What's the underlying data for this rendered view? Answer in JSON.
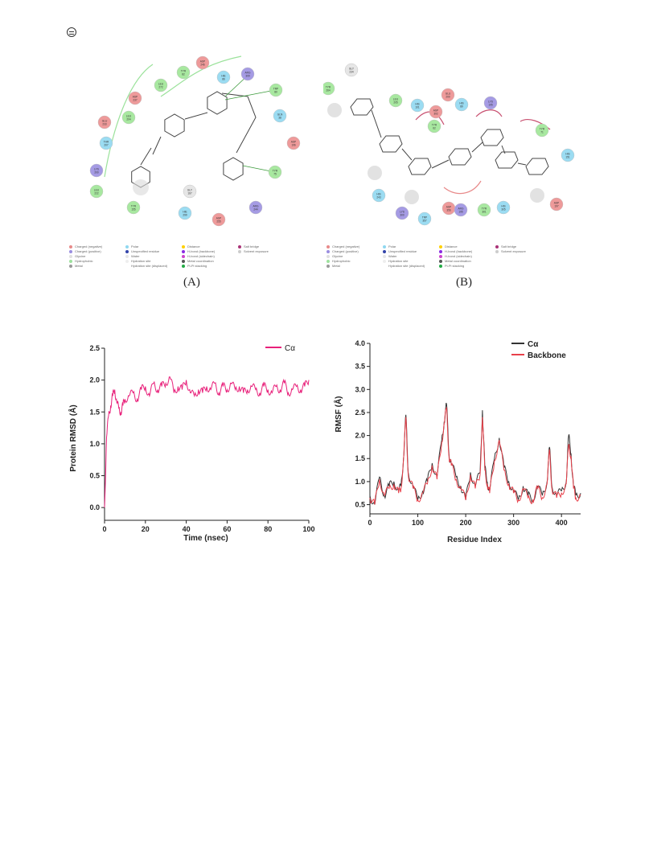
{
  "figure1": {
    "caption_a": "(A)",
    "caption_b": "(B)",
    "residues_a": [
      {
        "label": "ASP 246",
        "type": "neg"
      },
      {
        "label": "TYR 82",
        "type": "hyd"
      },
      {
        "label": "LEU 272",
        "type": "hyd"
      },
      {
        "label": "HIE 86",
        "type": "pol"
      },
      {
        "label": "ARG 309",
        "type": "pos"
      },
      {
        "label": "TRP 80",
        "type": "hyd"
      },
      {
        "label": "ASP 237",
        "type": "neg"
      },
      {
        "label": "GLN 38",
        "type": "pol"
      },
      {
        "label": "GLU 233",
        "type": "neg"
      },
      {
        "label": "LEU 204",
        "type": "hyd"
      },
      {
        "label": "THR 207",
        "type": "pol"
      },
      {
        "label": "ASP 196",
        "type": "neg"
      },
      {
        "label": "LYS 200",
        "type": "pos"
      },
      {
        "label": "TYR 75",
        "type": "hyd"
      },
      {
        "label": "LEU 222",
        "type": "hyd"
      },
      {
        "label": "GLY 167",
        "type": "gly"
      },
      {
        "label": "TYR 155",
        "type": "hyd"
      },
      {
        "label": "HIE 299",
        "type": "pol"
      },
      {
        "label": "ASP 255",
        "type": "neg"
      },
      {
        "label": "ARG 244",
        "type": "pos"
      }
    ],
    "residues_b": [
      {
        "label": "ASP 233",
        "type": "neg"
      },
      {
        "label": "GLY 234",
        "type": "gly"
      },
      {
        "label": "TYR 264",
        "type": "hyd"
      },
      {
        "label": "TYR 178",
        "type": "hyd"
      },
      {
        "label": "LEU 205",
        "type": "hyd"
      },
      {
        "label": "HIS 101",
        "type": "pol"
      },
      {
        "label": "ASP 302",
        "type": "neg"
      },
      {
        "label": "GLU 200",
        "type": "neg"
      },
      {
        "label": "TYR 62",
        "type": "hyd"
      },
      {
        "label": "HIS 89",
        "type": "pol"
      },
      {
        "label": "LYS 195",
        "type": "pos"
      },
      {
        "label": "TYR 71",
        "type": "hyd"
      },
      {
        "label": "HIS 151",
        "type": "pol"
      },
      {
        "label": "HIS 243",
        "type": "pol"
      },
      {
        "label": "LYS 300",
        "type": "pos"
      },
      {
        "label": "TRP 357",
        "type": "pol"
      },
      {
        "label": "ASP 356",
        "type": "neg"
      },
      {
        "label": "ARG 195",
        "type": "pos"
      },
      {
        "label": "TYR 301",
        "type": "hyd"
      },
      {
        "label": "HIS 305",
        "type": "pol"
      },
      {
        "label": "ASP 197",
        "type": "neg"
      }
    ],
    "legend": [
      {
        "label": "Charged (negative)",
        "color": "#e88a8a"
      },
      {
        "label": "Charged (positive)",
        "color": "#9a8ee0"
      },
      {
        "label": "Glycine",
        "color": "#e0e0e0"
      },
      {
        "label": "Hydrophobic",
        "color": "#9ee29e"
      },
      {
        "label": "Metal",
        "color": "#999999"
      },
      {
        "label": "Polar",
        "color": "#8fd8f0"
      },
      {
        "label": "Unspecified residue",
        "color": "#3344aa"
      },
      {
        "label": "Water",
        "color": "#e6e6e6"
      },
      {
        "label": "Hydration site",
        "color": "#eeeeee"
      },
      {
        "label": "Hydration site (displaced)",
        "color": "#ffffff"
      },
      {
        "label": "Distance",
        "color": "#ffd000"
      },
      {
        "label": "H-bond (backbone)",
        "color": "#8a2be2"
      },
      {
        "label": "H-bond (sidechain)",
        "color": "#cc44cc"
      },
      {
        "label": "Metal coordination",
        "color": "#555555"
      },
      {
        "label": "Pi-Pi stacking",
        "color": "#22aa44"
      },
      {
        "label": "Salt bridge",
        "color": "#aa3377"
      },
      {
        "label": "Solvent exposure",
        "color": "#cccccc"
      }
    ]
  },
  "charts": {
    "rmsd": {
      "legend": "Cα",
      "xlabel": "Time (nsec)",
      "ylabel": "Protein RMSD (Å)",
      "color": "#e8207a",
      "xticks": [
        "0",
        "20",
        "40",
        "60",
        "80",
        "100"
      ],
      "yticks": [
        "0.0",
        "0.5",
        "1.0",
        "1.5",
        "2.0",
        "2.5"
      ]
    },
    "rmsf": {
      "legend_a": "Cα",
      "legend_b": "Backbone",
      "xlabel": "Residue Index",
      "ylabel": "RMSF (Å)",
      "color_a": "#333333",
      "color_b": "#e8404a",
      "xticks": [
        "0",
        "100",
        "200",
        "300",
        "400"
      ],
      "yticks": [
        "0.5",
        "1.0",
        "1.5",
        "2.0",
        "2.5",
        "3.0",
        "3.5",
        "4.0"
      ]
    }
  },
  "chart_data": [
    {
      "type": "line",
      "xlabel": "Time (nsec)",
      "ylabel": "Protein RMSD (Å)",
      "xlim": [
        0,
        100
      ],
      "ylim": [
        -0.2,
        2.5
      ],
      "series": [
        {
          "name": "Cα",
          "x": [
            0,
            1,
            2,
            3,
            4,
            5,
            6,
            7,
            8,
            9,
            10,
            12,
            14,
            16,
            18,
            20,
            22,
            24,
            26,
            28,
            30,
            32,
            34,
            36,
            38,
            40,
            42,
            44,
            46,
            48,
            50,
            52,
            54,
            56,
            58,
            60,
            62,
            64,
            66,
            68,
            70,
            72,
            74,
            76,
            78,
            80,
            82,
            84,
            86,
            88,
            90,
            92,
            94,
            96,
            98,
            100
          ],
          "y": [
            0.0,
            1.1,
            1.45,
            1.6,
            1.75,
            1.85,
            1.65,
            1.55,
            1.5,
            1.6,
            1.7,
            1.75,
            1.8,
            1.7,
            1.85,
            1.9,
            1.75,
            1.95,
            1.85,
            1.9,
            1.95,
            2.05,
            1.8,
            1.9,
            1.85,
            2.0,
            1.8,
            1.75,
            1.85,
            1.8,
            1.9,
            1.85,
            1.95,
            1.8,
            1.9,
            1.85,
            1.95,
            1.85,
            1.9,
            1.8,
            1.85,
            1.9,
            1.85,
            1.8,
            1.9,
            1.85,
            1.8,
            1.9,
            1.85,
            1.95,
            1.8,
            1.85,
            1.9,
            1.85,
            1.9,
            2.0
          ]
        }
      ]
    },
    {
      "type": "line",
      "xlabel": "Residue Index",
      "ylabel": "RMSF (Å)",
      "xlim": [
        0,
        440
      ],
      "ylim": [
        0.3,
        4.0
      ],
      "series": [
        {
          "name": "Cα",
          "x": [
            0,
            10,
            20,
            30,
            40,
            50,
            60,
            65,
            70,
            75,
            80,
            90,
            100,
            110,
            120,
            130,
            140,
            150,
            155,
            160,
            165,
            170,
            180,
            190,
            200,
            210,
            220,
            230,
            235,
            240,
            245,
            250,
            260,
            270,
            280,
            290,
            300,
            310,
            320,
            330,
            340,
            350,
            360,
            370,
            375,
            380,
            390,
            400,
            410,
            415,
            420,
            425,
            430,
            440
          ],
          "y": [
            0.7,
            0.5,
            1.1,
            0.7,
            0.9,
            1.0,
            0.8,
            0.9,
            1.5,
            2.45,
            1.2,
            0.9,
            0.6,
            0.8,
            1.0,
            1.4,
            1.1,
            1.9,
            2.3,
            2.68,
            1.6,
            1.4,
            1.1,
            0.9,
            0.6,
            1.2,
            0.9,
            1.2,
            2.55,
            1.3,
            1.0,
            0.8,
            1.5,
            1.95,
            1.3,
            1.0,
            0.8,
            0.6,
            0.9,
            0.7,
            0.6,
            0.9,
            0.7,
            1.0,
            1.75,
            0.9,
            0.7,
            0.8,
            1.0,
            2.0,
            1.6,
            0.9,
            0.7,
            0.75
          ]
        },
        {
          "name": "Backbone",
          "x": [
            0,
            10,
            20,
            30,
            40,
            50,
            60,
            65,
            70,
            75,
            80,
            90,
            100,
            110,
            120,
            130,
            140,
            150,
            155,
            160,
            165,
            170,
            180,
            190,
            200,
            210,
            220,
            230,
            235,
            240,
            245,
            250,
            260,
            270,
            280,
            290,
            300,
            310,
            320,
            330,
            340,
            350,
            360,
            370,
            375,
            380,
            390,
            400,
            410,
            415,
            420,
            425,
            430,
            440
          ],
          "y": [
            0.65,
            0.5,
            1.05,
            0.7,
            0.85,
            0.95,
            0.75,
            0.85,
            1.45,
            2.4,
            1.15,
            0.85,
            0.6,
            0.75,
            0.95,
            1.35,
            1.05,
            1.85,
            2.25,
            2.6,
            1.55,
            1.35,
            1.05,
            0.85,
            0.6,
            1.15,
            0.85,
            1.15,
            2.4,
            1.25,
            0.95,
            0.75,
            1.45,
            1.9,
            1.25,
            0.95,
            0.75,
            0.6,
            0.85,
            0.65,
            0.6,
            0.85,
            0.65,
            0.95,
            1.7,
            0.85,
            0.65,
            0.75,
            0.95,
            1.8,
            1.55,
            0.85,
            0.65,
            0.7
          ]
        }
      ]
    }
  ]
}
